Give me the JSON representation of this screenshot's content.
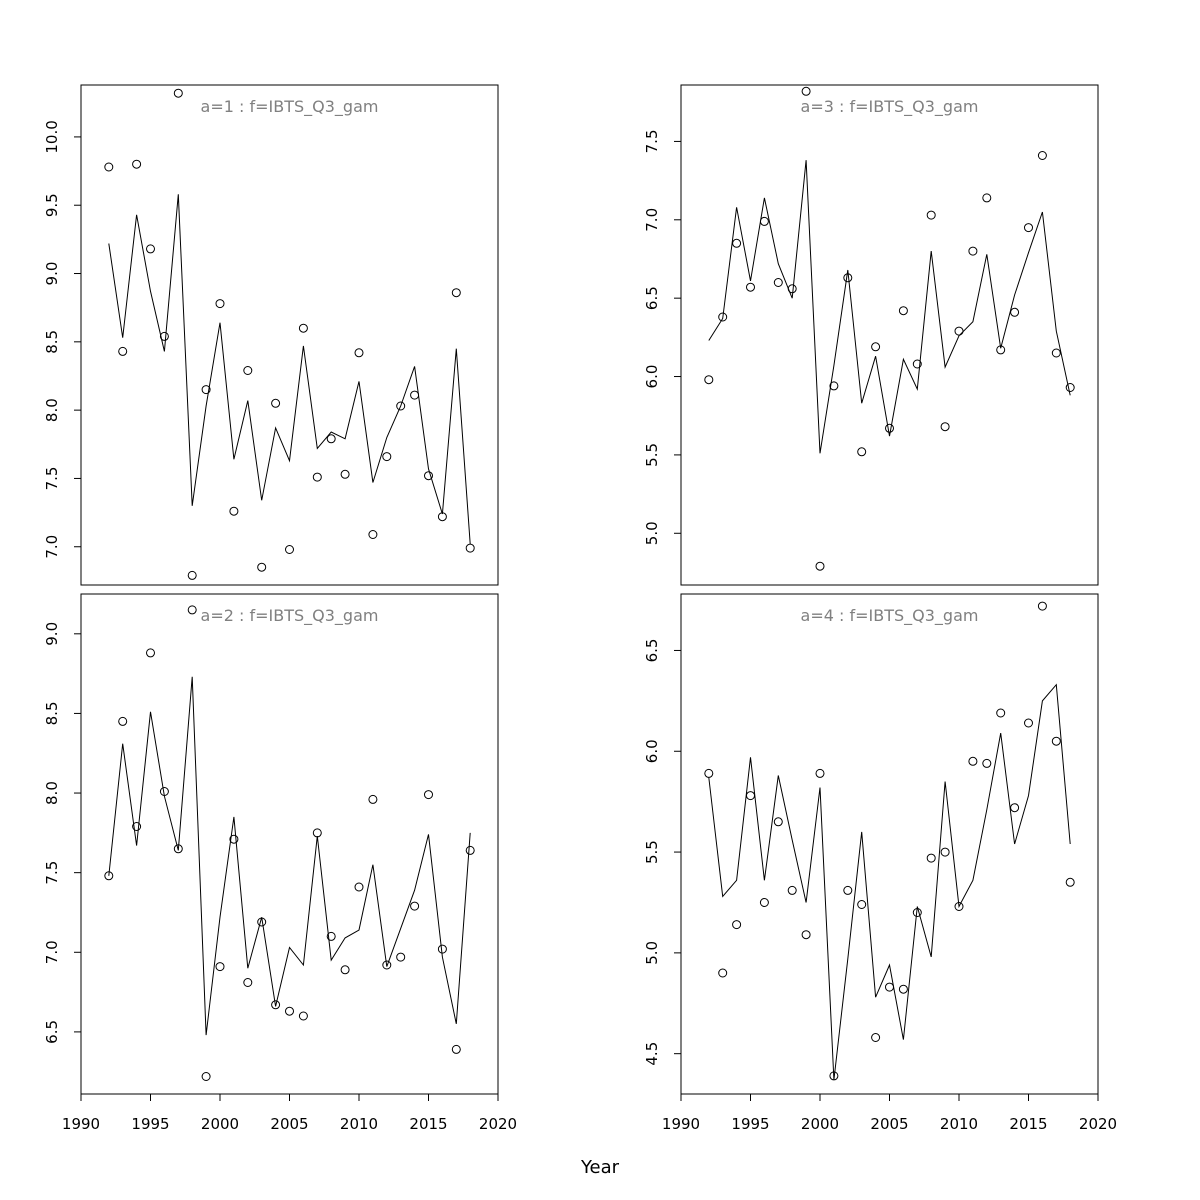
{
  "chart_data": {
    "type": "scatter",
    "xlabel": "Year",
    "x_ticks": [
      1990,
      1995,
      2000,
      2005,
      2010,
      2015,
      2020
    ],
    "x_tick_labels": [
      "1990",
      "1995",
      "2000",
      "2005",
      "2010",
      "2015",
      "2020"
    ],
    "xlim": [
      1990,
      2020
    ],
    "x": [
      1992,
      1993,
      1994,
      1995,
      1996,
      1997,
      1998,
      1999,
      2000,
      2001,
      2002,
      2003,
      2004,
      2005,
      2006,
      2007,
      2008,
      2009,
      2010,
      2011,
      2012,
      2013,
      2014,
      2015,
      2016,
      2017,
      2018
    ],
    "panels": [
      {
        "title": "a=1  :  f=IBTS_Q3_gam",
        "ylim": [
          6.72,
          10.38
        ],
        "y_ticks": [
          7.0,
          7.5,
          8.0,
          8.5,
          9.0,
          9.5,
          10.0
        ],
        "y_tick_labels": [
          "7.0",
          "7.5",
          "8.0",
          "8.5",
          "9.0",
          "9.5",
          "10.0"
        ],
        "observed": [
          9.78,
          8.43,
          9.8,
          9.18,
          8.54,
          10.32,
          6.79,
          8.15,
          8.78,
          7.26,
          8.29,
          6.85,
          8.05,
          6.98,
          8.6,
          7.51,
          7.79,
          7.53,
          8.42,
          7.09,
          7.66,
          8.03,
          8.11,
          7.52,
          7.22,
          8.86,
          6.99
        ],
        "fitted": [
          9.22,
          8.53,
          9.43,
          8.87,
          8.43,
          9.58,
          7.3,
          8.03,
          8.64,
          7.64,
          8.07,
          7.34,
          7.87,
          7.63,
          8.47,
          7.72,
          7.84,
          7.79,
          8.21,
          7.47,
          7.8,
          8.03,
          8.32,
          7.57,
          7.24,
          8.45,
          7.02
        ]
      },
      {
        "title": "a=3  :  f=IBTS_Q3_gam",
        "ylim": [
          4.67,
          7.86
        ],
        "y_ticks": [
          5.0,
          5.5,
          6.0,
          6.5,
          7.0,
          7.5
        ],
        "y_tick_labels": [
          "5.0",
          "5.5",
          "6.0",
          "6.5",
          "7.0",
          "7.5"
        ],
        "observed": [
          5.98,
          6.38,
          6.85,
          6.57,
          6.99,
          6.6,
          6.56,
          7.82,
          4.79,
          5.94,
          6.63,
          5.52,
          6.19,
          5.67,
          6.42,
          6.08,
          7.03,
          5.68,
          6.29,
          6.8,
          7.14,
          6.17,
          6.41,
          6.95,
          7.41,
          6.15,
          5.93
        ],
        "fitted": [
          6.23,
          6.37,
          7.08,
          6.61,
          7.14,
          6.72,
          6.5,
          7.38,
          5.51,
          6.07,
          6.68,
          5.83,
          6.13,
          5.62,
          6.11,
          5.92,
          6.8,
          6.06,
          6.26,
          6.35,
          6.78,
          6.18,
          6.52,
          6.79,
          7.05,
          6.29,
          5.88
        ]
      },
      {
        "title": "a=2  :  f=IBTS_Q3_gam",
        "ylim": [
          6.11,
          9.25
        ],
        "y_ticks": [
          6.5,
          7.0,
          7.5,
          8.0,
          8.5,
          9.0
        ],
        "y_tick_labels": [
          "6.5",
          "7.0",
          "7.5",
          "8.0",
          "8.5",
          "9.0"
        ],
        "observed": [
          7.48,
          8.45,
          7.79,
          8.88,
          8.01,
          7.65,
          9.15,
          6.22,
          6.91,
          7.71,
          6.81,
          7.19,
          6.67,
          6.63,
          6.6,
          7.75,
          7.1,
          6.89,
          7.41,
          7.96,
          6.92,
          6.97,
          7.29,
          7.99,
          7.02,
          6.39,
          7.64
        ],
        "fitted": [
          7.48,
          8.31,
          7.67,
          8.51,
          7.98,
          7.64,
          8.73,
          6.48,
          7.22,
          7.85,
          6.9,
          7.22,
          6.66,
          7.03,
          6.92,
          7.73,
          6.95,
          7.09,
          7.14,
          7.55,
          6.91,
          7.15,
          7.39,
          7.74,
          6.97,
          6.55,
          7.75
        ]
      },
      {
        "title": "a=4  :  f=IBTS_Q3_gam",
        "ylim": [
          4.3,
          6.78
        ],
        "y_ticks": [
          4.5,
          5.0,
          5.5,
          6.0,
          6.5
        ],
        "y_tick_labels": [
          "4.5",
          "5.0",
          "5.5",
          "6.0",
          "6.5"
        ],
        "observed": [
          5.89,
          4.9,
          5.14,
          5.78,
          5.25,
          5.65,
          5.31,
          5.09,
          5.89,
          4.39,
          5.31,
          5.24,
          4.58,
          4.83,
          4.82,
          5.2,
          5.47,
          5.5,
          5.23,
          5.95,
          5.94,
          6.19,
          5.72,
          6.14,
          6.72,
          6.05,
          5.35
        ],
        "fitted": [
          5.87,
          5.28,
          5.36,
          5.97,
          5.36,
          5.88,
          5.56,
          5.25,
          5.82,
          4.37,
          4.97,
          5.6,
          4.78,
          4.94,
          4.57,
          5.23,
          4.98,
          5.85,
          5.23,
          5.36,
          5.71,
          6.09,
          5.54,
          5.78,
          6.25,
          6.33,
          5.54
        ]
      }
    ]
  }
}
